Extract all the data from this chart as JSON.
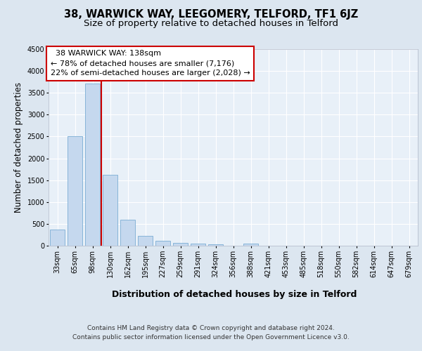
{
  "title": "38, WARWICK WAY, LEEGOMERY, TELFORD, TF1 6JZ",
  "subtitle": "Size of property relative to detached houses in Telford",
  "xlabel": "Distribution of detached houses by size in Telford",
  "ylabel": "Number of detached properties",
  "footer_line1": "Contains HM Land Registry data © Crown copyright and database right 2024.",
  "footer_line2": "Contains public sector information licensed under the Open Government Licence v3.0.",
  "bar_labels": [
    "33sqm",
    "65sqm",
    "98sqm",
    "130sqm",
    "162sqm",
    "195sqm",
    "227sqm",
    "259sqm",
    "291sqm",
    "324sqm",
    "356sqm",
    "388sqm",
    "421sqm",
    "453sqm",
    "485sqm",
    "518sqm",
    "550sqm",
    "582sqm",
    "614sqm",
    "647sqm",
    "679sqm"
  ],
  "bar_values": [
    370,
    2500,
    3720,
    1620,
    590,
    230,
    110,
    65,
    45,
    40,
    0,
    50,
    0,
    0,
    0,
    0,
    0,
    0,
    0,
    0,
    0
  ],
  "bar_color": "#c5d8ee",
  "bar_edge_color": "#7aadd4",
  "vline_index": 3,
  "vline_color": "#cc0000",
  "annotation_title": "38 WARWICK WAY: 138sqm",
  "annotation_line1": "← 78% of detached houses are smaller (7,176)",
  "annotation_line2": "22% of semi-detached houses are larger (2,028) →",
  "annotation_box_color": "#ffffff",
  "annotation_border_color": "#cc0000",
  "ylim": [
    0,
    4500
  ],
  "yticks": [
    0,
    500,
    1000,
    1500,
    2000,
    2500,
    3000,
    3500,
    4000,
    4500
  ],
  "bg_color": "#dce6f0",
  "plot_bg_color": "#e8f0f8",
  "grid_color": "#ffffff",
  "title_fontsize": 10.5,
  "subtitle_fontsize": 9.5,
  "xlabel_fontsize": 9,
  "ylabel_fontsize": 8.5,
  "tick_fontsize": 7,
  "annot_fontsize": 8,
  "footer_fontsize": 6.5
}
